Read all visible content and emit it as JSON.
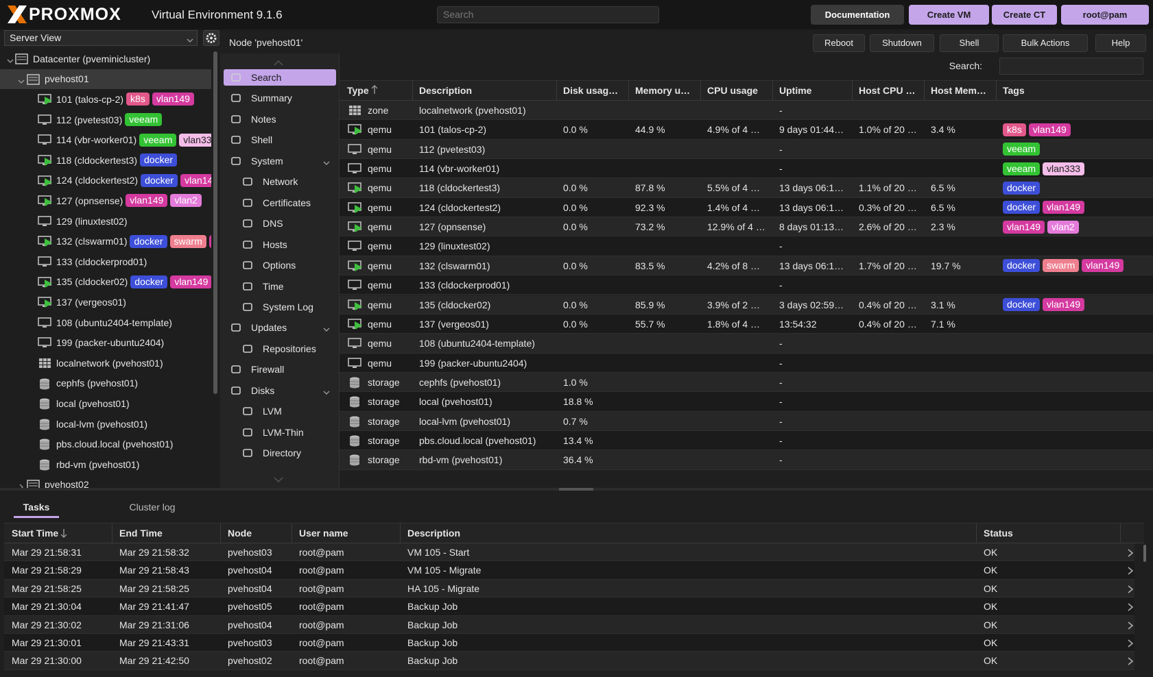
{
  "header": {
    "logo": "PROXMOX",
    "product": "Virtual Environment 9.1.6",
    "search": "Search",
    "buttons": [
      "Documentation",
      "Create VM",
      "Create CT",
      "root@pam"
    ]
  },
  "tree": {
    "view": "Server View",
    "items": [
      {
        "label": "Datacenter (pveminicluster)",
        "level": 0
      },
      {
        "label": "pvehost01",
        "level": 1
      },
      {
        "label": "101 (talos-cp-2)",
        "level": 2
      },
      {
        "label": "112 (pvetest03)",
        "level": 2
      },
      {
        "label": "114 (vbr-worker01)",
        "level": 2
      },
      {
        "label": "118 (cldockertest3)",
        "level": 2
      },
      {
        "label": "124 (cldockertest2)",
        "level": 2
      },
      {
        "label": "127 (opnsense)",
        "level": 2
      },
      {
        "label": "129 (linuxtest02)",
        "level": 2
      },
      {
        "label": "132 (clswarm01)",
        "level": 2
      },
      {
        "label": "133 (cldockerprod01)",
        "level": 2
      },
      {
        "label": "135 (cldocker02)",
        "level": 2
      },
      {
        "label": "137 (vergeos01)",
        "level": 2
      },
      {
        "label": "108 (ubuntu2404-template)",
        "level": 2
      },
      {
        "label": "199 (packer-ubuntu2404)",
        "level": 2
      },
      {
        "label": "localnetwork (pvehost01)",
        "level": 2
      },
      {
        "label": "cephfs (pvehost01)",
        "level": 2
      },
      {
        "label": "local (pvehost01)",
        "level": 2
      },
      {
        "label": "local-lvm (pvehost01)",
        "level": 2
      },
      {
        "label": "pbs.cloud.local (pvehost01)",
        "level": 2
      },
      {
        "label": "rbd-vm (pvehost01)",
        "level": 2
      },
      {
        "label": "pvehost02",
        "level": 1
      }
    ]
  },
  "node_title": "Node 'pvehost01'",
  "node_buttons": [
    "Reboot",
    "Shutdown",
    "Shell",
    "Bulk Actions",
    "Help"
  ],
  "menu": [
    {
      "label": "Search",
      "level": 0
    },
    {
      "label": "Summary",
      "level": 0
    },
    {
      "label": "Notes",
      "level": 0
    },
    {
      "label": "Shell",
      "level": 0
    },
    {
      "label": "System",
      "level": 0
    },
    {
      "label": "Network",
      "level": 1
    },
    {
      "label": "Certificates",
      "level": 1
    },
    {
      "label": "DNS",
      "level": 1
    },
    {
      "label": "Hosts",
      "level": 1
    },
    {
      "label": "Options",
      "level": 1
    },
    {
      "label": "Time",
      "level": 1
    },
    {
      "label": "System Log",
      "level": 1
    },
    {
      "label": "Updates",
      "level": 0
    },
    {
      "label": "Repositories",
      "level": 1
    },
    {
      "label": "Firewall",
      "level": 0
    },
    {
      "label": "Disks",
      "level": 0
    },
    {
      "label": "LVM",
      "level": 1
    },
    {
      "label": "LVM-Thin",
      "level": 1
    },
    {
      "label": "Directory",
      "level": 1
    }
  ],
  "grid": {
    "search_label": "Search:",
    "columns": [
      "Type",
      "Description",
      "Disk usag…",
      "Memory u…",
      "CPU usage",
      "Uptime",
      "Host CPU …",
      "Host Mem…",
      "Tags"
    ],
    "rows": [
      {
        "cells": [
          "zone",
          "localnetwork (pvehost01)",
          null,
          null,
          null,
          "-",
          null,
          null
        ],
        "tags": []
      },
      {
        "cells": [
          "qemu",
          "101 (talos-cp-2)",
          "0.0 %",
          "44.9 %",
          "4.9% of 4 …",
          "9 days 01:44…",
          "1.0% of 20 …",
          "3.4 %"
        ],
        "tags": [
          {
            "text": "k8s",
            "color": "#e2588a"
          },
          {
            "text": "vlan149",
            "color": "#d43a9f"
          }
        ]
      },
      {
        "cells": [
          "qemu",
          "112 (pvetest03)",
          null,
          null,
          null,
          "-",
          null,
          null
        ],
        "tags": [
          {
            "text": "veeam",
            "color": "#33c233"
          }
        ]
      },
      {
        "cells": [
          "qemu",
          "114 (vbr-worker01)",
          null,
          null,
          null,
          "-",
          null,
          null
        ],
        "tags": [
          {
            "text": "veeam",
            "color": "#33c233"
          },
          {
            "text": "vlan333",
            "color": "#f5bde9",
            "text_color": "#222222"
          }
        ]
      },
      {
        "cells": [
          "qemu",
          "118 (cldockertest3)",
          "0.0 %",
          "87.8 %",
          "5.5% of 4 …",
          "13 days 06:1…",
          "1.1% of 20 …",
          "6.5 %"
        ],
        "tags": [
          {
            "text": "docker",
            "color": "#3d4fd8"
          }
        ]
      },
      {
        "cells": [
          "qemu",
          "124 (cldockertest2)",
          "0.0 %",
          "92.3 %",
          "1.4% of 4 …",
          "13 days 06:1…",
          "0.3% of 20 …",
          "6.5 %"
        ],
        "tags": [
          {
            "text": "docker",
            "color": "#3d4fd8"
          },
          {
            "text": "vlan149",
            "color": "#d43a9f"
          }
        ]
      },
      {
        "cells": [
          "qemu",
          "127 (opnsense)",
          "0.0 %",
          "73.2 %",
          "12.9% of 4 …",
          "8 days 01:13…",
          "2.6% of 20 …",
          "2.3 %"
        ],
        "tags": [
          {
            "text": "vlan149",
            "color": "#d43a9f"
          },
          {
            "text": "vlan2",
            "color": "#e47ad9"
          }
        ]
      },
      {
        "cells": [
          "qemu",
          "129 (linuxtest02)",
          null,
          null,
          null,
          "-",
          null,
          null
        ],
        "tags": []
      },
      {
        "cells": [
          "qemu",
          "132 (clswarm01)",
          "0.0 %",
          "83.5 %",
          "4.2% of 8 …",
          "13 days 06:1…",
          "1.7% of 20 …",
          "19.7 %"
        ],
        "tags": [
          {
            "text": "docker",
            "color": "#3d4fd8"
          },
          {
            "text": "swarm",
            "color": "#ee7f8f"
          },
          {
            "text": "vlan149",
            "color": "#d43a9f"
          }
        ]
      },
      {
        "cells": [
          "qemu",
          "133 (cldockerprod01)",
          null,
          null,
          null,
          "-",
          null,
          null
        ],
        "tags": []
      },
      {
        "cells": [
          "qemu",
          "135 (cldocker02)",
          "0.0 %",
          "85.9 %",
          "3.9% of 2 …",
          "3 days 02:59…",
          "0.4% of 20 …",
          "3.1 %"
        ],
        "tags": [
          {
            "text": "docker",
            "color": "#3d4fd8"
          },
          {
            "text": "vlan149",
            "color": "#d43a9f"
          }
        ]
      },
      {
        "cells": [
          "qemu",
          "137 (vergeos01)",
          "0.0 %",
          "55.7 %",
          "1.8% of 4 …",
          "13:54:32",
          "0.4% of 20 …",
          "7.1 %"
        ],
        "tags": []
      },
      {
        "cells": [
          "qemu",
          "108 (ubuntu2404-template)",
          null,
          null,
          null,
          "-",
          null,
          null
        ],
        "tags": []
      },
      {
        "cells": [
          "qemu",
          "199 (packer-ubuntu2404)",
          null,
          null,
          null,
          "-",
          null,
          null
        ],
        "tags": []
      },
      {
        "cells": [
          "storage",
          "cephfs (pvehost01)",
          "1.0 %",
          null,
          null,
          "-",
          null,
          null
        ],
        "tags": []
      },
      {
        "cells": [
          "storage",
          "local (pvehost01)",
          "18.8 %",
          null,
          null,
          "-",
          null,
          null
        ],
        "tags": []
      },
      {
        "cells": [
          "storage",
          "local-lvm (pvehost01)",
          "0.7 %",
          null,
          null,
          "-",
          null,
          null
        ],
        "tags": []
      },
      {
        "cells": [
          "storage",
          "pbs.cloud.local (pvehost01)",
          "13.4 %",
          null,
          null,
          "-",
          null,
          null
        ],
        "tags": []
      },
      {
        "cells": [
          "storage",
          "rbd-vm (pvehost01)",
          "36.4 %",
          null,
          null,
          "-",
          null,
          null
        ],
        "tags": []
      }
    ]
  },
  "tasks": {
    "tabs": [
      "Tasks",
      "Cluster log"
    ],
    "columns": [
      "Start Time",
      "End Time",
      "Node",
      "User name",
      "Description",
      "Status"
    ],
    "rows": [
      [
        "Mar 29 21:58:31",
        "Mar 29 21:58:32",
        "pvehost03",
        "root@pam",
        "VM 105 - Start",
        "OK"
      ],
      [
        "Mar 29 21:58:29",
        "Mar 29 21:58:43",
        "pvehost04",
        "root@pam",
        "VM 105 - Migrate",
        "OK"
      ],
      [
        "Mar 29 21:58:25",
        "Mar 29 21:58:25",
        "pvehost04",
        "root@pam",
        "HA 105 - Migrate",
        "OK"
      ],
      [
        "Mar 29 21:30:04",
        "Mar 29 21:41:47",
        "pvehost05",
        "root@pam",
        "Backup Job",
        "OK"
      ],
      [
        "Mar 29 21:30:02",
        "Mar 29 21:31:06",
        "pvehost04",
        "root@pam",
        "Backup Job",
        "OK"
      ],
      [
        "Mar 29 21:30:01",
        "Mar 29 21:43:31",
        "pvehost03",
        "root@pam",
        "Backup Job",
        "OK"
      ],
      [
        "Mar 29 21:30:00",
        "Mar 29 21:42:50",
        "pvehost02",
        "root@pam",
        "Backup Job",
        "OK"
      ]
    ]
  }
}
